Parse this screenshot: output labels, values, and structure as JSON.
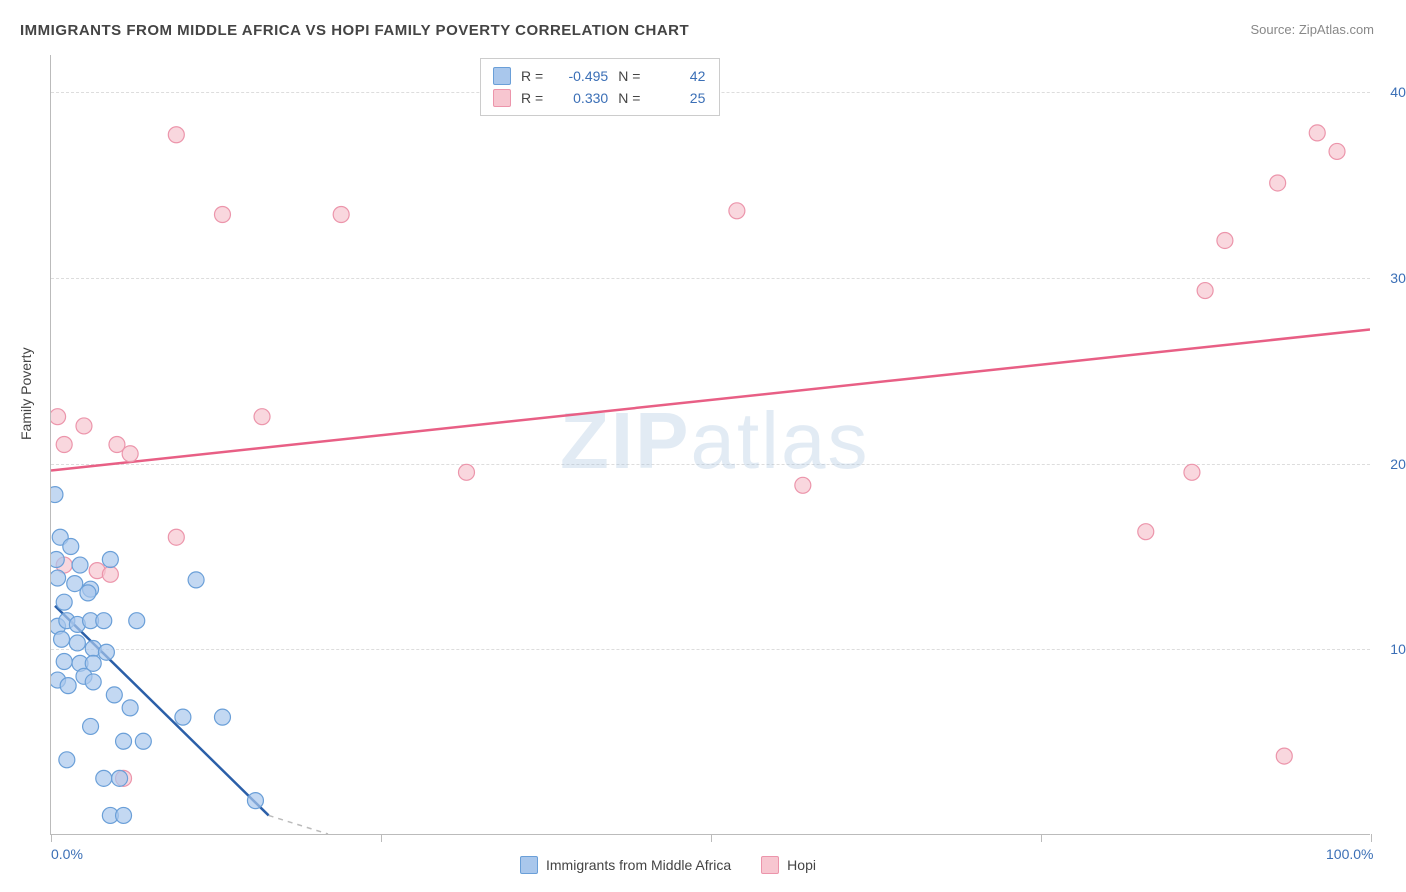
{
  "title": "IMMIGRANTS FROM MIDDLE AFRICA VS HOPI FAMILY POVERTY CORRELATION CHART",
  "source": "Source: ZipAtlas.com",
  "y_axis_label": "Family Poverty",
  "watermark": "ZIPatlas",
  "chart": {
    "type": "scatter",
    "xlim": [
      0,
      100
    ],
    "ylim": [
      0,
      42
    ],
    "x_ticks": [
      0,
      25,
      50,
      75,
      100
    ],
    "x_tick_labels_shown": {
      "0": "0.0%",
      "100": "100.0%"
    },
    "y_ticks": [
      10,
      20,
      30,
      40
    ],
    "y_tick_labels": [
      "10.0%",
      "20.0%",
      "30.0%",
      "40.0%"
    ],
    "grid_color": "#dddddd",
    "background": "#ffffff"
  },
  "series": [
    {
      "name": "Immigrants from Middle Africa",
      "color_fill": "#a9c7ec",
      "color_stroke": "#6a9fd8",
      "line_color": "#2b5fa8",
      "marker_radius": 8,
      "marker_opacity": 0.7,
      "R": "-0.495",
      "N": "42",
      "trend": {
        "x1": 0.3,
        "y1": 12.3,
        "x2": 16.5,
        "y2": 1.0
      },
      "trend_dash": {
        "x1": 16.5,
        "y1": 1.0,
        "x2": 21,
        "y2": -2
      },
      "points": [
        [
          0.3,
          18.3
        ],
        [
          0.4,
          14.8
        ],
        [
          0.7,
          16.0
        ],
        [
          1.5,
          15.5
        ],
        [
          2.2,
          14.5
        ],
        [
          3.0,
          13.2
        ],
        [
          4.5,
          14.8
        ],
        [
          0.5,
          13.8
        ],
        [
          1.8,
          13.5
        ],
        [
          2.8,
          13.0
        ],
        [
          0.5,
          11.2
        ],
        [
          1.2,
          11.5
        ],
        [
          2.0,
          11.3
        ],
        [
          3.0,
          11.5
        ],
        [
          4.0,
          11.5
        ],
        [
          6.5,
          11.5
        ],
        [
          11.0,
          13.7
        ],
        [
          0.8,
          10.5
        ],
        [
          2.0,
          10.3
        ],
        [
          3.2,
          10.0
        ],
        [
          1.0,
          9.3
        ],
        [
          2.2,
          9.2
        ],
        [
          3.2,
          9.2
        ],
        [
          4.2,
          9.8
        ],
        [
          2.5,
          8.5
        ],
        [
          3.2,
          8.2
        ],
        [
          0.5,
          8.3
        ],
        [
          1.3,
          8.0
        ],
        [
          4.8,
          7.5
        ],
        [
          6.0,
          6.8
        ],
        [
          10.0,
          6.3
        ],
        [
          13.0,
          6.3
        ],
        [
          3.0,
          5.8
        ],
        [
          5.5,
          5.0
        ],
        [
          7.0,
          5.0
        ],
        [
          1.2,
          4.0
        ],
        [
          4.0,
          3.0
        ],
        [
          5.2,
          3.0
        ],
        [
          15.5,
          1.8
        ],
        [
          4.5,
          1.0
        ],
        [
          5.5,
          1.0
        ],
        [
          1.0,
          12.5
        ]
      ]
    },
    {
      "name": "Hopi",
      "color_fill": "#f7c6d0",
      "color_stroke": "#ec95ab",
      "line_color": "#e85f85",
      "marker_radius": 8,
      "marker_opacity": 0.7,
      "R": "0.330",
      "N": "25",
      "trend": {
        "x1": 0,
        "y1": 19.6,
        "x2": 100,
        "y2": 27.2
      },
      "points": [
        [
          9.5,
          37.7
        ],
        [
          13.0,
          33.4
        ],
        [
          22.0,
          33.4
        ],
        [
          52.0,
          33.6
        ],
        [
          96.0,
          37.8
        ],
        [
          97.5,
          36.8
        ],
        [
          93.0,
          35.1
        ],
        [
          89.0,
          32.0
        ],
        [
          87.5,
          29.3
        ],
        [
          0.5,
          22.5
        ],
        [
          2.5,
          22.0
        ],
        [
          1.0,
          21.0
        ],
        [
          5.0,
          21.0
        ],
        [
          6.0,
          20.5
        ],
        [
          16.0,
          22.5
        ],
        [
          31.5,
          19.5
        ],
        [
          57.0,
          18.8
        ],
        [
          86.5,
          19.5
        ],
        [
          9.5,
          16.0
        ],
        [
          83.0,
          16.3
        ],
        [
          1.0,
          14.5
        ],
        [
          3.5,
          14.2
        ],
        [
          4.5,
          14.0
        ],
        [
          5.5,
          3.0
        ],
        [
          93.5,
          4.2
        ]
      ]
    }
  ],
  "legend_top": {
    "stat1_label": "R =",
    "stat2_label": "N ="
  },
  "legend_bottom": {
    "series1_label": "Immigrants from Middle Africa",
    "series2_label": "Hopi"
  }
}
